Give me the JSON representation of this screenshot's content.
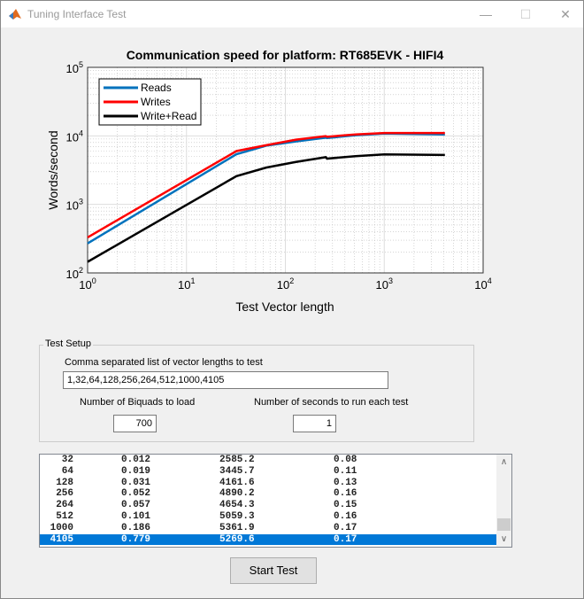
{
  "window": {
    "title": "Tuning Interface Test",
    "minimize": "—",
    "maximize": "☐",
    "close": "✕"
  },
  "chart_data": {
    "type": "line",
    "title": "Communication speed for platform:  RT685EVK - HIFI4",
    "xlabel": "Test Vector length",
    "ylabel": "Words/second",
    "xscale": "log",
    "yscale": "log",
    "xlim": [
      1,
      10000
    ],
    "ylim": [
      100,
      100000
    ],
    "xticks": [
      1,
      10,
      100,
      1000,
      10000
    ],
    "yticks": [
      100,
      1000,
      10000,
      100000
    ],
    "grid": true,
    "minor_grid": true,
    "legend_position": "top-left",
    "x": [
      1,
      32,
      64,
      128,
      256,
      264,
      512,
      1000,
      4105
    ],
    "series": [
      {
        "name": "Reads",
        "color": "#0072bd",
        "values": [
          270,
          5400,
          7200,
          8300,
          9400,
          9300,
          10200,
          10800,
          10500
        ]
      },
      {
        "name": "Writes",
        "color": "#ff0000",
        "values": [
          330,
          6000,
          7300,
          8800,
          9900,
          9700,
          10500,
          11000,
          11000
        ]
      },
      {
        "name": "Write+Read",
        "color": "#000000",
        "values": [
          145,
          2585.2,
          3445.7,
          4161.6,
          4890.2,
          4654.3,
          5059.3,
          5361.9,
          5269.6
        ]
      }
    ]
  },
  "setup": {
    "group_label": "Test Setup",
    "lengths_label": "Comma separated list of vector lengths to test",
    "lengths_value": "1,32,64,128,256,264,512,1000,4105",
    "biquads_label": "Number of Biquads to load",
    "biquads_value": "700",
    "seconds_label": "Number of seconds to run each test",
    "seconds_value": "1"
  },
  "results": [
    [
      "32",
      "0.012",
      "2585.2",
      "0.08"
    ],
    [
      "64",
      "0.019",
      "3445.7",
      "0.11"
    ],
    [
      "128",
      "0.031",
      "4161.6",
      "0.13"
    ],
    [
      "256",
      "0.052",
      "4890.2",
      "0.16"
    ],
    [
      "264",
      "0.057",
      "4654.3",
      "0.15"
    ],
    [
      "512",
      "0.101",
      "5059.3",
      "0.16"
    ],
    [
      "1000",
      "0.186",
      "5361.9",
      "0.17"
    ],
    [
      "4105",
      "0.779",
      "5269.6",
      "0.17"
    ]
  ],
  "selected_row": 7,
  "start_button": "Start Test"
}
